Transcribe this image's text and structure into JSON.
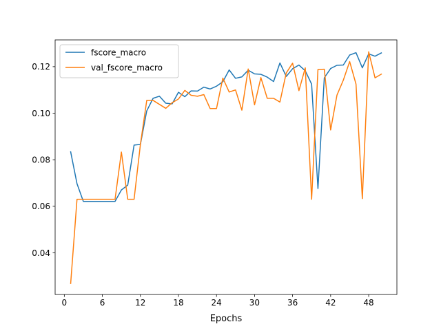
{
  "chart_data": {
    "type": "line",
    "title": "",
    "xlabel": "Epochs",
    "ylabel": "",
    "xlim": [
      -1.45,
      52.45
    ],
    "ylim": [
      0.0221,
      0.1315
    ],
    "xticks": [
      0,
      6,
      12,
      18,
      24,
      30,
      36,
      42,
      48
    ],
    "yticks": [
      0.04,
      0.06,
      0.08,
      0.1,
      0.12
    ],
    "ytick_labels": [
      "0.04",
      "0.06",
      "0.08",
      "0.10",
      "0.12"
    ],
    "grid": false,
    "legend": "upper-left",
    "x": [
      1,
      2,
      3,
      4,
      5,
      6,
      7,
      8,
      9,
      10,
      11,
      12,
      13,
      14,
      15,
      16,
      17,
      18,
      19,
      20,
      21,
      22,
      23,
      24,
      25,
      26,
      27,
      28,
      29,
      30,
      31,
      32,
      33,
      34,
      35,
      36,
      37,
      38,
      39,
      40,
      41,
      42,
      43,
      44,
      45,
      46,
      47,
      48,
      49,
      50
    ],
    "series": [
      {
        "name": "fscore_macro",
        "color": "#1f77b4",
        "values": [
          0.0834,
          0.0697,
          0.0621,
          0.0621,
          0.0621,
          0.0621,
          0.0621,
          0.0621,
          0.067,
          0.0691,
          0.0863,
          0.0866,
          0.101,
          0.1064,
          0.1073,
          0.1043,
          0.104,
          0.109,
          0.1071,
          0.1096,
          0.1095,
          0.1112,
          0.1104,
          0.1116,
          0.1135,
          0.1186,
          0.115,
          0.1156,
          0.1185,
          0.1169,
          0.1167,
          0.1155,
          0.1136,
          0.1216,
          0.1158,
          0.1191,
          0.1207,
          0.1182,
          0.1125,
          0.0676,
          0.1152,
          0.1192,
          0.1206,
          0.1207,
          0.125,
          0.126,
          0.1195,
          0.1255,
          0.1245,
          0.1259
        ]
      },
      {
        "name": "val_fscore_macro",
        "color": "#ff7f0e",
        "values": [
          0.0268,
          0.063,
          0.063,
          0.063,
          0.063,
          0.063,
          0.063,
          0.063,
          0.0833,
          0.063,
          0.063,
          0.0866,
          0.1055,
          0.1055,
          0.1038,
          0.1021,
          0.1045,
          0.1061,
          0.1098,
          0.1077,
          0.1073,
          0.108,
          0.102,
          0.102,
          0.1151,
          0.1091,
          0.11,
          0.1013,
          0.119,
          0.1036,
          0.1153,
          0.1064,
          0.1064,
          0.1048,
          0.1173,
          0.1215,
          0.1097,
          0.1195,
          0.063,
          0.1188,
          0.1189,
          0.0928,
          0.1078,
          0.1142,
          0.1222,
          0.1125,
          0.0633,
          0.1264,
          0.1152,
          0.1168
        ]
      }
    ]
  }
}
